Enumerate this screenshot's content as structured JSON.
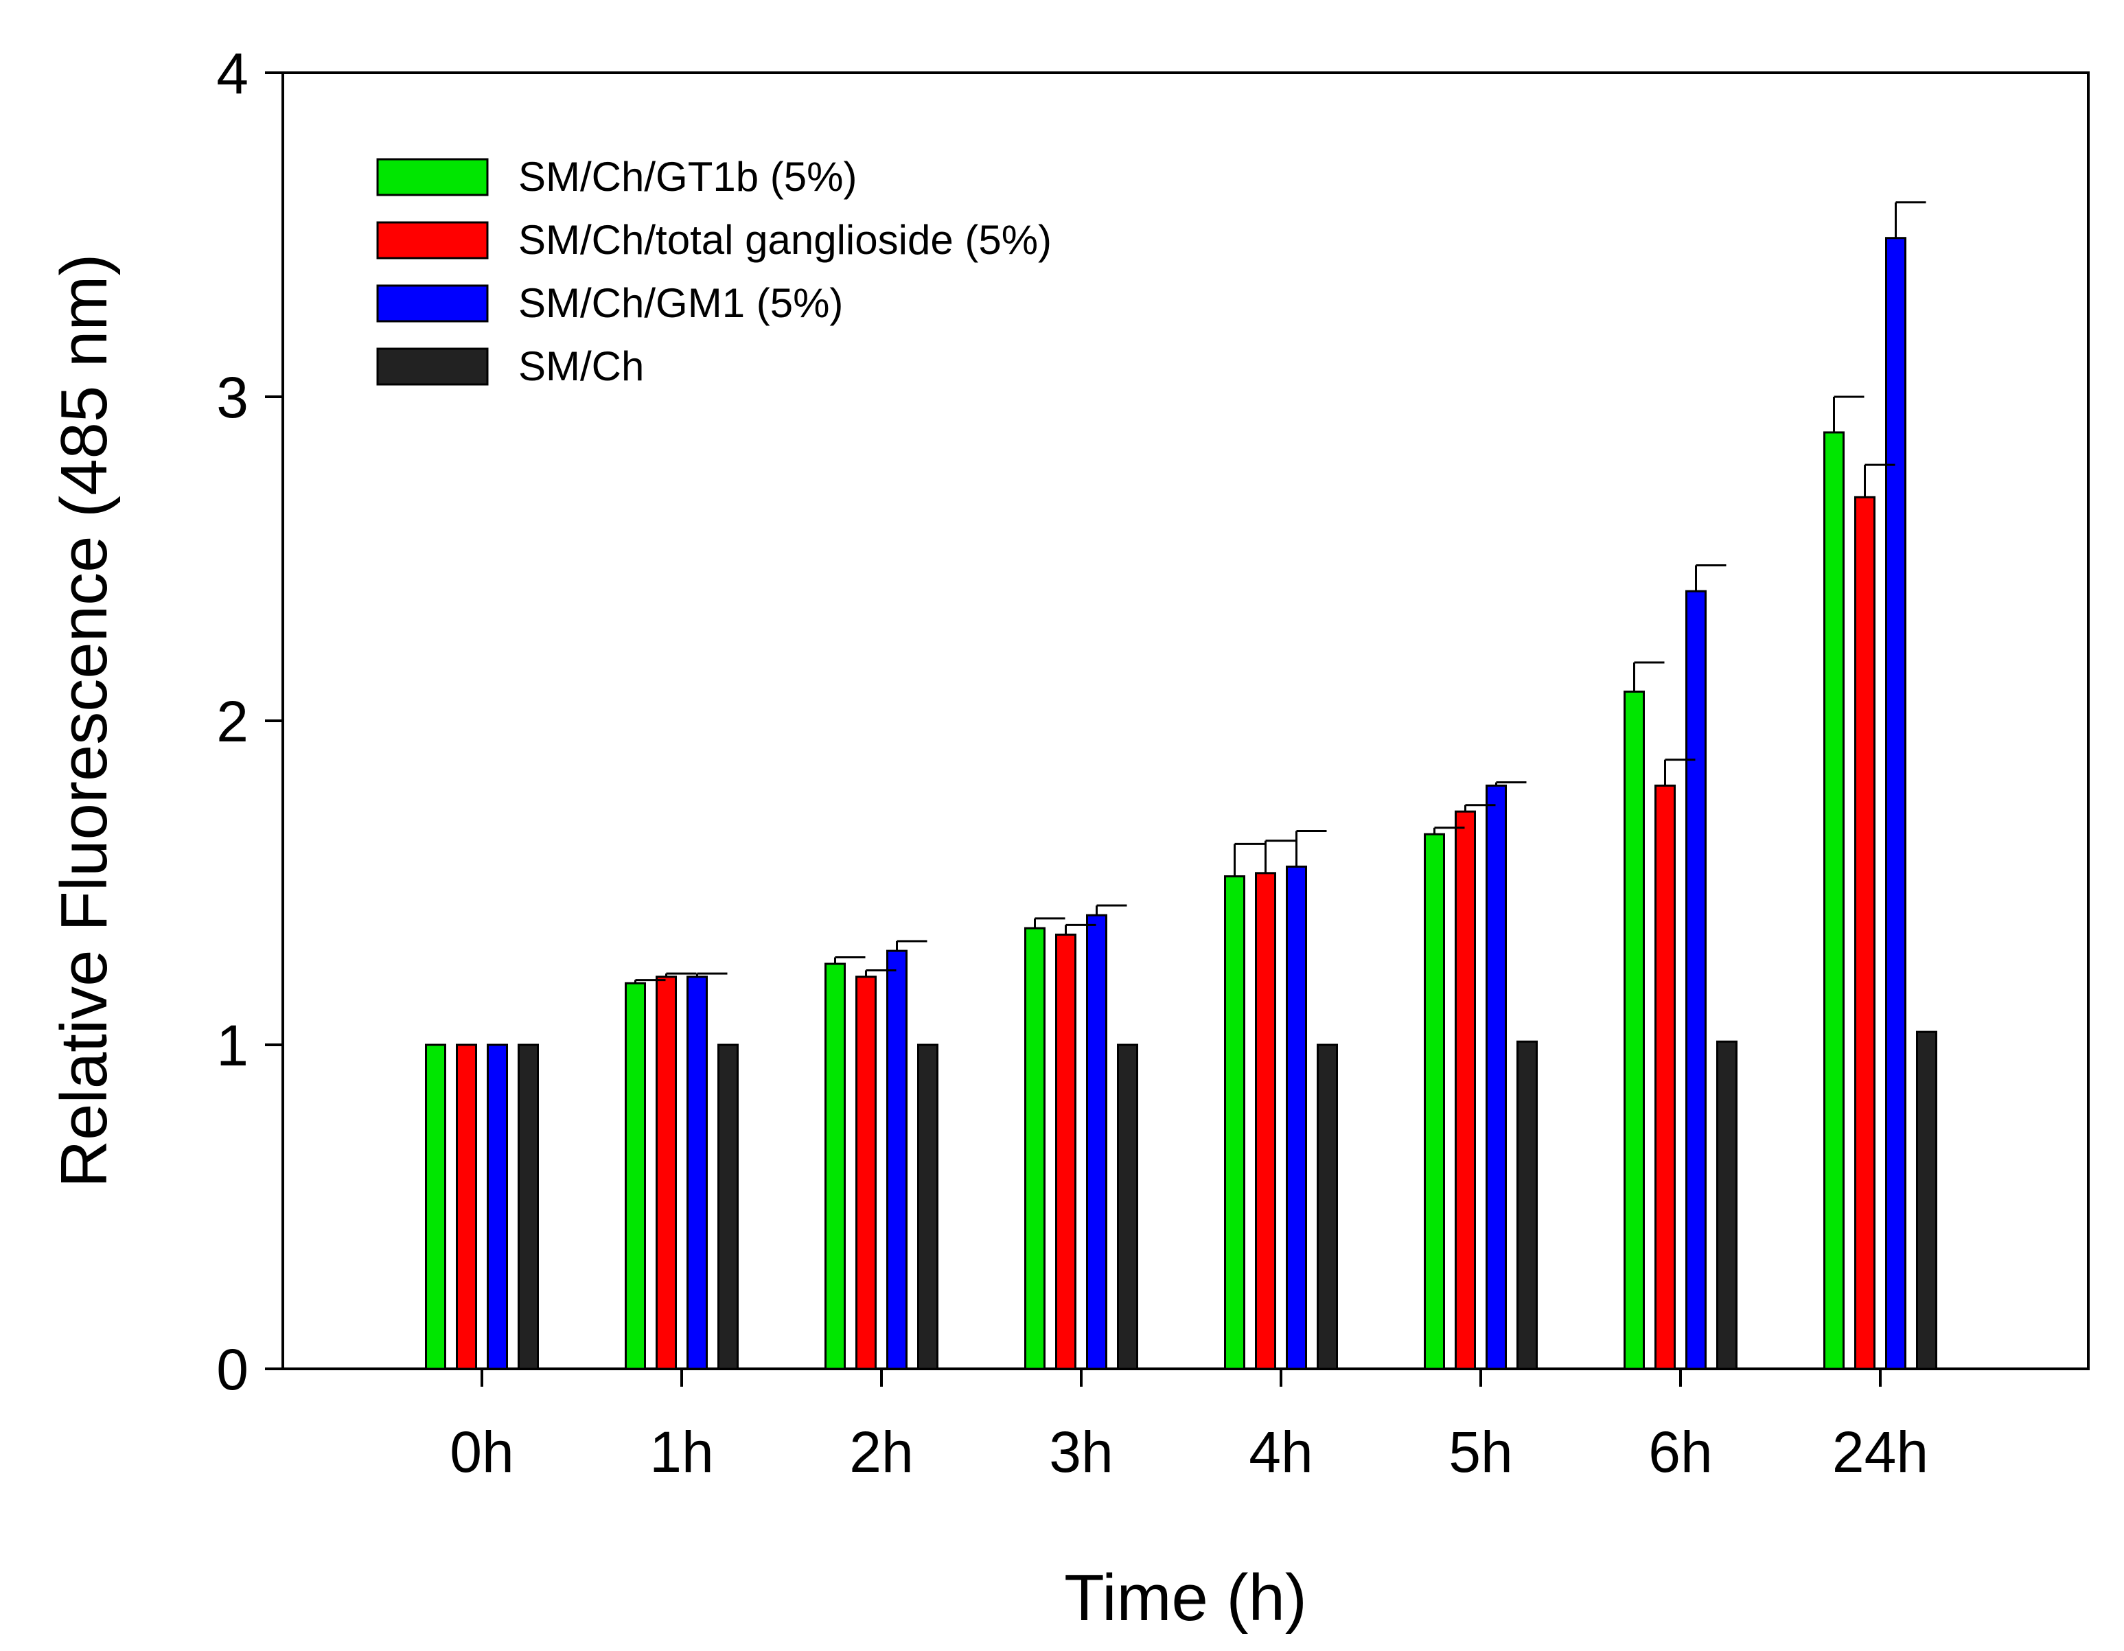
{
  "chart_data": {
    "type": "bar",
    "title": "",
    "xlabel": "Time (h)",
    "ylabel": "Relative Fluorescence (485 nm)",
    "ylim": [
      0,
      4
    ],
    "yticks": [
      "0",
      "1",
      "2",
      "3",
      "4"
    ],
    "grid": false,
    "legend_position": "top-left",
    "categories": [
      "0h",
      "1h",
      "2h",
      "3h",
      "4h",
      "5h",
      "6h",
      "24h"
    ],
    "series": [
      {
        "name": "SM/Ch/GT1b (5%)",
        "color": "#00e600",
        "values": [
          1.0,
          1.19,
          1.25,
          1.36,
          1.52,
          1.65,
          2.09,
          2.89
        ],
        "errors": [
          0.0,
          0.01,
          0.02,
          0.03,
          0.1,
          0.02,
          0.09,
          0.11
        ]
      },
      {
        "name": "SM/Ch/total ganglioside (5%)",
        "color": "#ff0000",
        "values": [
          1.0,
          1.21,
          1.21,
          1.34,
          1.53,
          1.72,
          1.8,
          2.69
        ],
        "errors": [
          0.0,
          0.01,
          0.02,
          0.03,
          0.1,
          0.02,
          0.08,
          0.1
        ]
      },
      {
        "name": "SM/Ch/GM1 (5%)",
        "color": "#0000ff",
        "values": [
          1.0,
          1.21,
          1.29,
          1.4,
          1.55,
          1.8,
          2.4,
          3.49
        ],
        "errors": [
          0.0,
          0.01,
          0.03,
          0.03,
          0.11,
          0.01,
          0.08,
          0.11
        ]
      },
      {
        "name": "SM/Ch",
        "color": "#222222",
        "values": [
          1.0,
          1.0,
          1.0,
          1.0,
          1.0,
          1.01,
          1.01,
          1.04
        ],
        "errors": [
          0.0,
          0.0,
          0.0,
          0.0,
          0.0,
          0.0,
          0.0,
          0.0
        ]
      }
    ]
  }
}
